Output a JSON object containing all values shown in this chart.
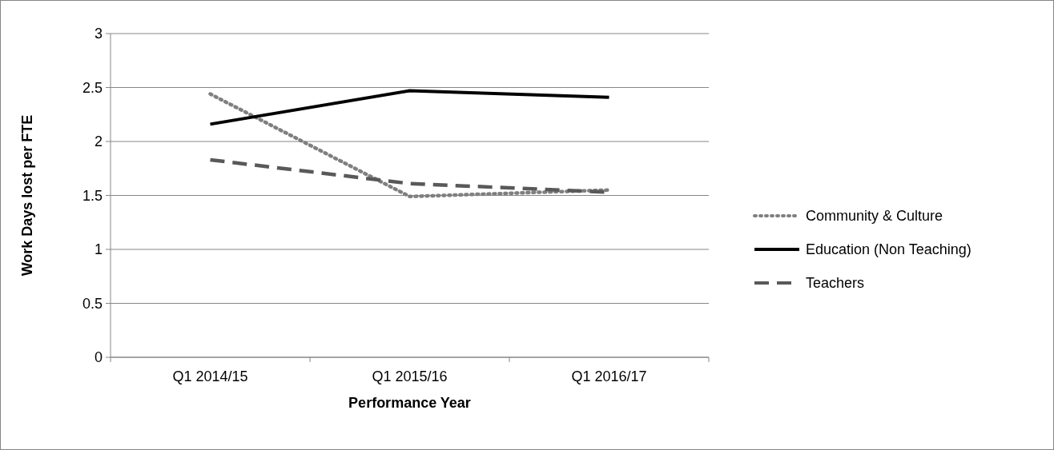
{
  "chart_data": {
    "type": "line",
    "xlabel": "Performance Year",
    "ylabel": "Work Days lost per FTE",
    "categories": [
      "Q1 2014/15",
      "Q1 2015/16",
      "Q1 2016/17"
    ],
    "series": [
      {
        "name": "Community & Culture",
        "color": "#7f7f7f",
        "line_style": "dotted",
        "values": [
          2.44,
          1.49,
          1.55
        ]
      },
      {
        "name": "Education (Non Teaching)",
        "color": "#000000",
        "line_style": "solid",
        "values": [
          2.16,
          2.47,
          2.41
        ]
      },
      {
        "name": "Teachers",
        "color": "#595959",
        "line_style": "dashed",
        "values": [
          1.83,
          1.61,
          1.53
        ]
      }
    ],
    "ylim": [
      0,
      3
    ],
    "yticks": [
      0,
      0.5,
      1,
      1.5,
      2,
      2.5,
      3
    ],
    "grid": "y",
    "legend": "right",
    "marker": "none"
  }
}
